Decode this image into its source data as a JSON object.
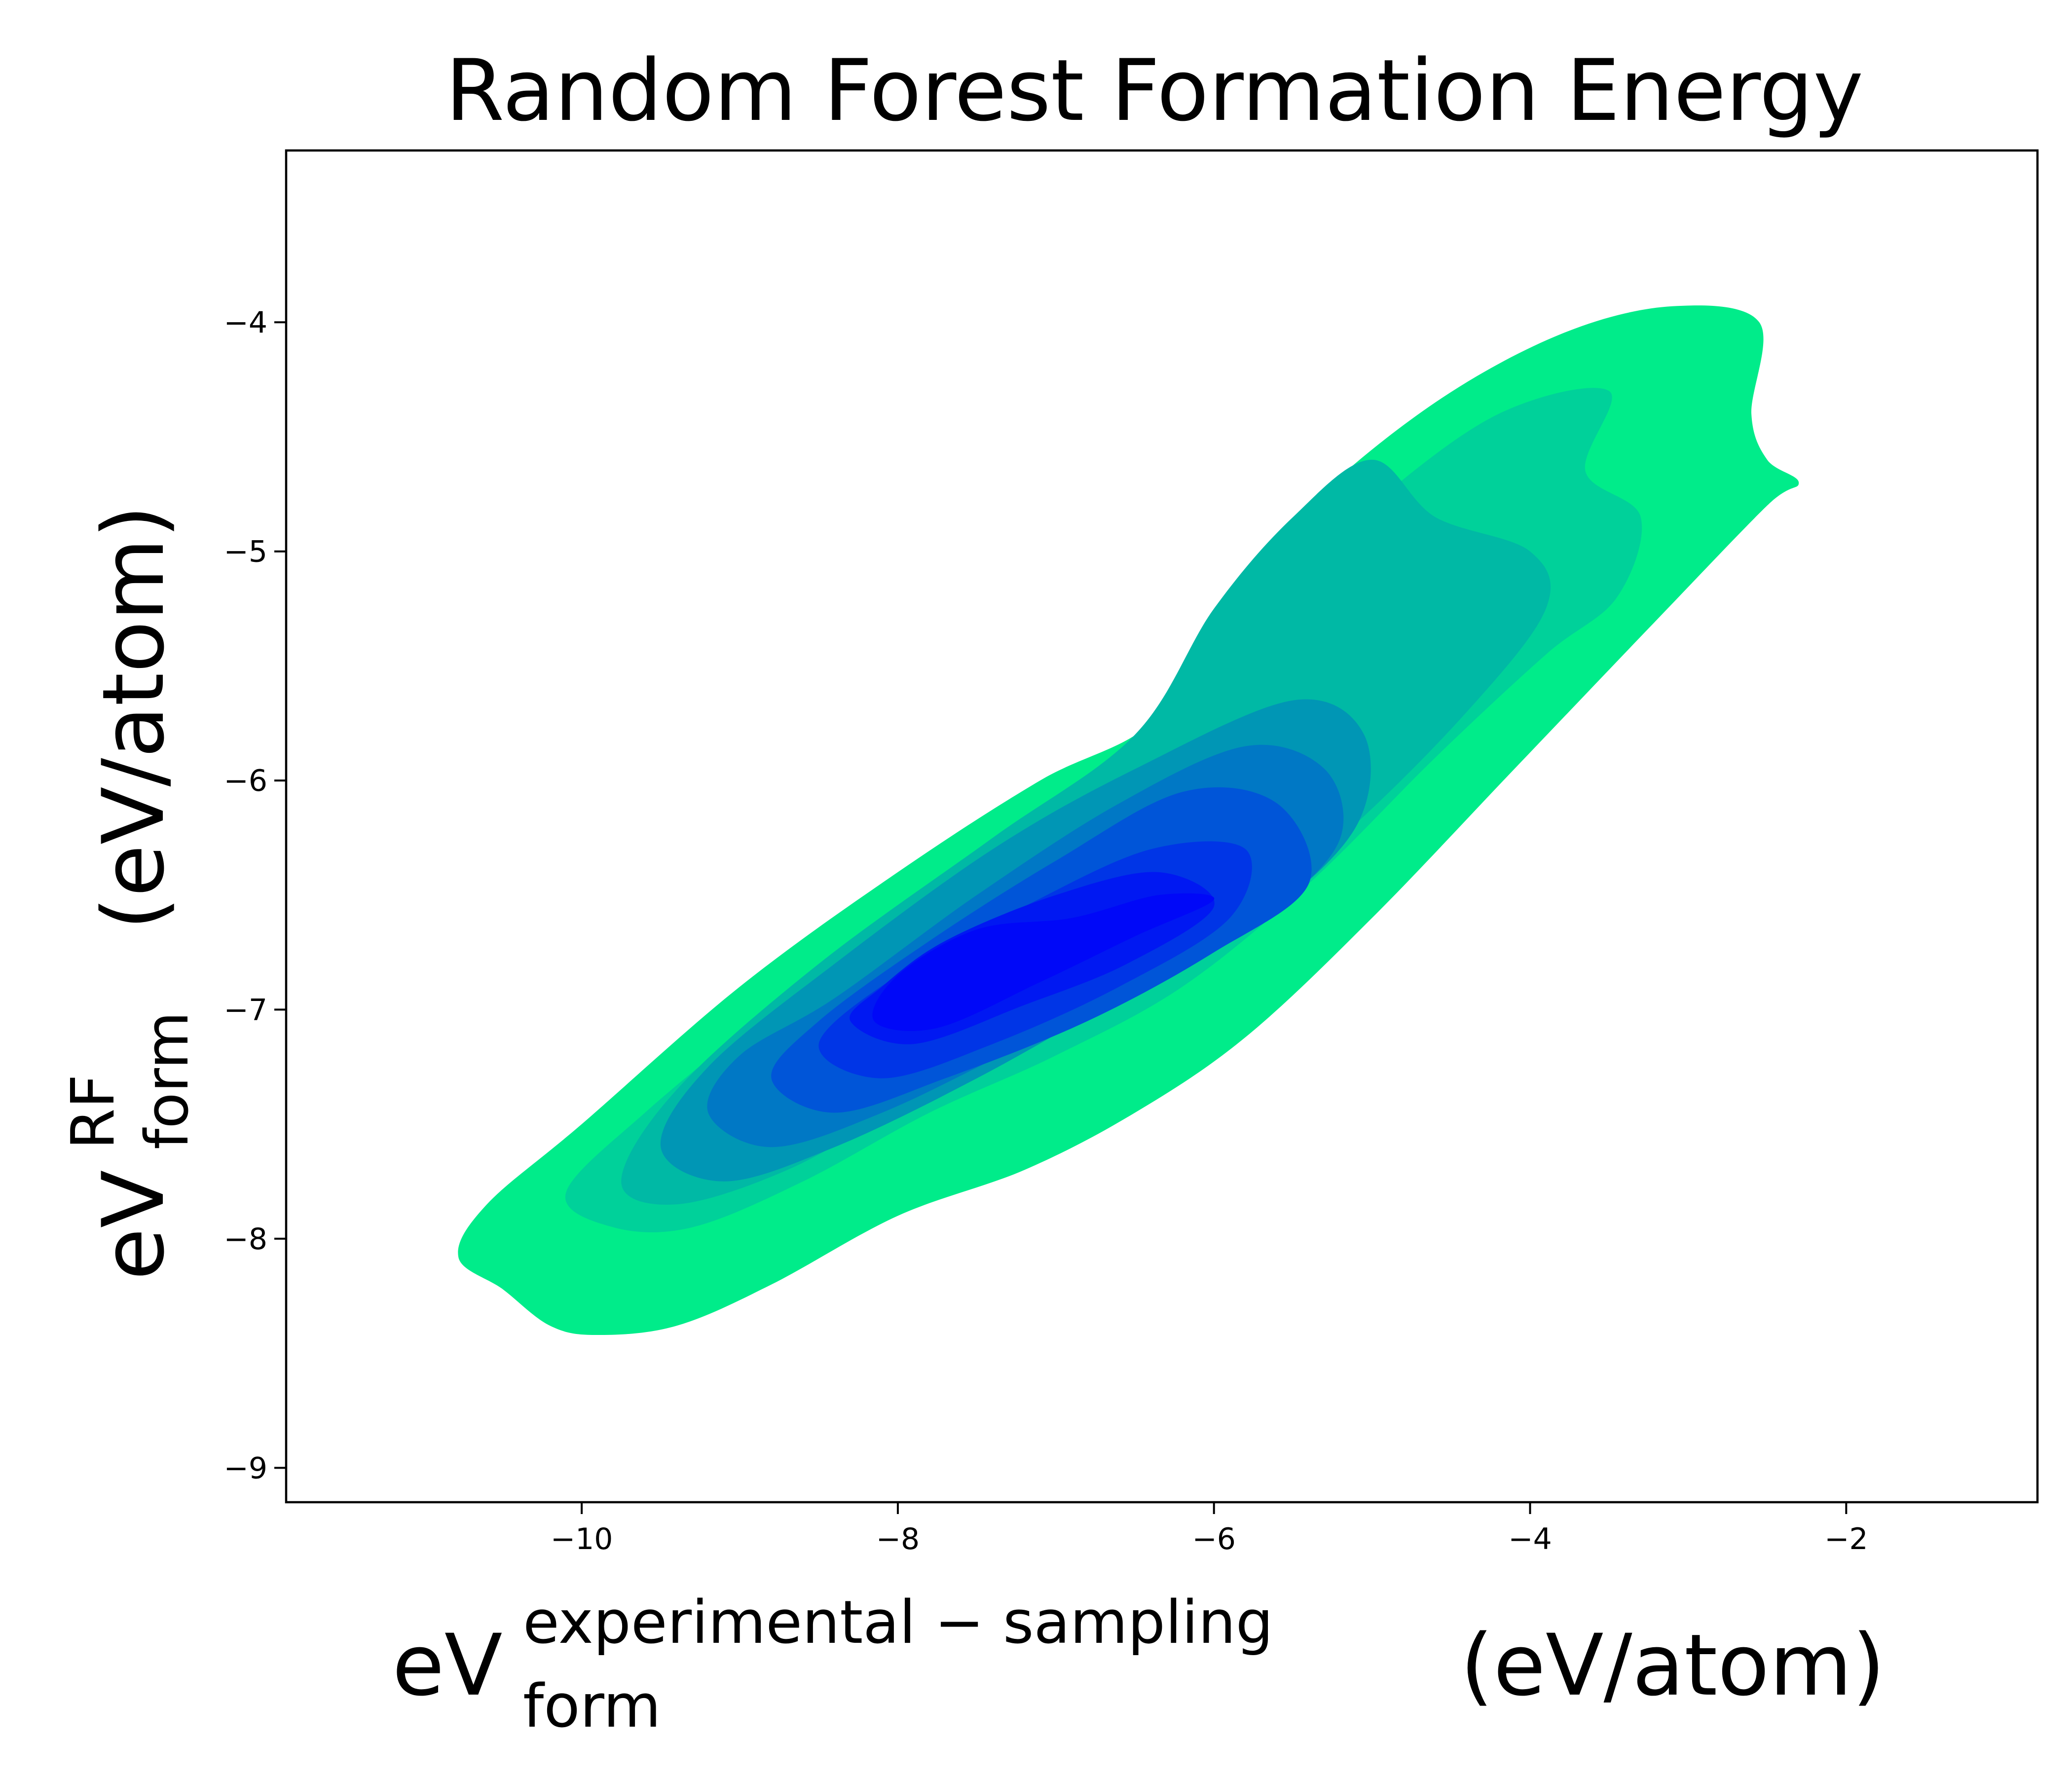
{
  "chart_data": {
    "type": "kde-contour",
    "title": "Random Forest Formation Energy",
    "xlabel": {
      "base": "eV",
      "superscript": "experimental − sampling",
      "subscript": "form",
      "unit": "(eV/atom)"
    },
    "ylabel": {
      "base": "eV",
      "superscript": "RF",
      "subscript": "form",
      "unit": "(eV/atom)"
    },
    "xlim": [
      -11.87,
      -0.79
    ],
    "ylim": [
      -9.15,
      -3.25
    ],
    "xticks": [
      -10,
      -8,
      -6,
      -4,
      -2
    ],
    "xtick_labels": [
      "−10",
      "−8",
      "−6",
      "−4",
      "−2"
    ],
    "yticks": [
      -9,
      -8,
      -7,
      -6,
      -5,
      -4
    ],
    "ytick_labels": [
      "−9",
      "−8",
      "−7",
      "−6",
      "−5",
      "−4"
    ],
    "grid": false,
    "legend": "none",
    "density_levels": [
      {
        "level": 1,
        "color": "#00ec8a",
        "contour": [
          [
            -10.78,
            -8.08
          ],
          [
            -10.5,
            -8.22
          ],
          [
            -10.2,
            -8.38
          ],
          [
            -9.9,
            -8.42
          ],
          [
            -9.4,
            -8.38
          ],
          [
            -8.8,
            -8.2
          ],
          [
            -8.0,
            -7.9
          ],
          [
            -7.2,
            -7.7
          ],
          [
            -6.5,
            -7.45
          ],
          [
            -5.8,
            -7.12
          ],
          [
            -5.0,
            -6.6
          ],
          [
            -4.1,
            -5.95
          ],
          [
            -3.2,
            -5.3
          ],
          [
            -2.5,
            -4.8
          ],
          [
            -2.3,
            -4.7
          ],
          [
            -2.5,
            -4.6
          ],
          [
            -2.6,
            -4.4
          ],
          [
            -2.55,
            -4.0
          ],
          [
            -3.1,
            -3.93
          ],
          [
            -3.8,
            -4.05
          ],
          [
            -4.6,
            -4.35
          ],
          [
            -5.4,
            -4.8
          ],
          [
            -6.0,
            -5.3
          ],
          [
            -6.4,
            -5.75
          ],
          [
            -7.1,
            -6.0
          ],
          [
            -8.0,
            -6.4
          ],
          [
            -9.0,
            -6.9
          ],
          [
            -10.0,
            -7.5
          ],
          [
            -10.6,
            -7.85
          ]
        ]
      },
      {
        "level": 2,
        "color": "#00d19a",
        "contour": [
          [
            -10.1,
            -7.8
          ],
          [
            -9.8,
            -7.95
          ],
          [
            -9.3,
            -7.95
          ],
          [
            -8.6,
            -7.75
          ],
          [
            -7.8,
            -7.45
          ],
          [
            -7.0,
            -7.2
          ],
          [
            -6.2,
            -6.9
          ],
          [
            -5.4,
            -6.45
          ],
          [
            -4.6,
            -5.9
          ],
          [
            -3.9,
            -5.45
          ],
          [
            -3.45,
            -5.2
          ],
          [
            -3.3,
            -4.85
          ],
          [
            -3.65,
            -4.65
          ],
          [
            -3.5,
            -4.3
          ],
          [
            -4.2,
            -4.4
          ],
          [
            -5.0,
            -4.8
          ],
          [
            -5.55,
            -5.2
          ],
          [
            -5.9,
            -5.7
          ],
          [
            -6.8,
            -6.0
          ],
          [
            -7.8,
            -6.5
          ],
          [
            -8.8,
            -7.0
          ],
          [
            -9.6,
            -7.45
          ]
        ]
      },
      {
        "level": 3,
        "color": "#00b9a5",
        "contour": [
          [
            -9.75,
            -7.75
          ],
          [
            -9.4,
            -7.85
          ],
          [
            -8.7,
            -7.7
          ],
          [
            -7.9,
            -7.4
          ],
          [
            -7.0,
            -7.1
          ],
          [
            -6.1,
            -6.75
          ],
          [
            -5.2,
            -6.25
          ],
          [
            -4.4,
            -5.7
          ],
          [
            -3.9,
            -5.25
          ],
          [
            -4.0,
            -5.0
          ],
          [
            -4.6,
            -4.85
          ],
          [
            -5.0,
            -4.6
          ],
          [
            -5.5,
            -4.85
          ],
          [
            -6.0,
            -5.25
          ],
          [
            -6.5,
            -5.8
          ],
          [
            -7.4,
            -6.25
          ],
          [
            -8.5,
            -6.8
          ],
          [
            -9.4,
            -7.35
          ]
        ]
      },
      {
        "level": 4,
        "color": "#0096b5",
        "contour": [
          [
            -9.5,
            -7.6
          ],
          [
            -9.1,
            -7.75
          ],
          [
            -8.4,
            -7.6
          ],
          [
            -7.5,
            -7.3
          ],
          [
            -6.6,
            -6.95
          ],
          [
            -5.7,
            -6.6
          ],
          [
            -5.1,
            -6.2
          ],
          [
            -5.05,
            -5.8
          ],
          [
            -5.5,
            -5.65
          ],
          [
            -6.5,
            -5.95
          ],
          [
            -7.4,
            -6.3
          ],
          [
            -8.4,
            -6.8
          ],
          [
            -9.2,
            -7.25
          ]
        ]
      },
      {
        "level": 5,
        "color": "#0078c5",
        "contour": [
          [
            -9.2,
            -7.45
          ],
          [
            -8.8,
            -7.6
          ],
          [
            -8.1,
            -7.45
          ],
          [
            -7.2,
            -7.15
          ],
          [
            -6.3,
            -6.85
          ],
          [
            -5.6,
            -6.55
          ],
          [
            -5.2,
            -6.25
          ],
          [
            -5.3,
            -5.95
          ],
          [
            -5.8,
            -5.85
          ],
          [
            -6.6,
            -6.1
          ],
          [
            -7.5,
            -6.5
          ],
          [
            -8.4,
            -6.95
          ],
          [
            -9.0,
            -7.2
          ]
        ]
      },
      {
        "level": 6,
        "color": "#0055d8",
        "contour": [
          [
            -8.8,
            -7.3
          ],
          [
            -8.4,
            -7.45
          ],
          [
            -7.7,
            -7.3
          ],
          [
            -6.8,
            -7.05
          ],
          [
            -6.0,
            -6.75
          ],
          [
            -5.4,
            -6.45
          ],
          [
            -5.6,
            -6.1
          ],
          [
            -6.2,
            -6.05
          ],
          [
            -7.0,
            -6.35
          ],
          [
            -7.8,
            -6.7
          ],
          [
            -8.5,
            -7.05
          ]
        ]
      },
      {
        "level": 7,
        "color": "#0035e6",
        "contour": [
          [
            -8.5,
            -7.15
          ],
          [
            -8.1,
            -7.3
          ],
          [
            -7.4,
            -7.15
          ],
          [
            -6.6,
            -6.9
          ],
          [
            -5.9,
            -6.6
          ],
          [
            -5.8,
            -6.3
          ],
          [
            -6.4,
            -6.3
          ],
          [
            -7.2,
            -6.55
          ],
          [
            -8.0,
            -6.85
          ]
        ]
      },
      {
        "level": 8,
        "color": "#0018f2",
        "contour": [
          [
            -8.3,
            -7.05
          ],
          [
            -7.9,
            -7.15
          ],
          [
            -7.2,
            -6.98
          ],
          [
            -6.55,
            -6.8
          ],
          [
            -6.0,
            -6.55
          ],
          [
            -6.35,
            -6.4
          ],
          [
            -7.0,
            -6.5
          ],
          [
            -7.7,
            -6.7
          ],
          [
            -8.1,
            -6.9
          ]
        ]
      },
      {
        "level": 9,
        "color": "#0008f8",
        "contour": [
          [
            -8.15,
            -7.05
          ],
          [
            -7.75,
            -7.08
          ],
          [
            -7.1,
            -6.88
          ],
          [
            -6.5,
            -6.68
          ],
          [
            -6.0,
            -6.52
          ],
          [
            -6.35,
            -6.5
          ],
          [
            -6.9,
            -6.6
          ],
          [
            -7.5,
            -6.65
          ],
          [
            -8.0,
            -6.85
          ]
        ]
      }
    ]
  }
}
